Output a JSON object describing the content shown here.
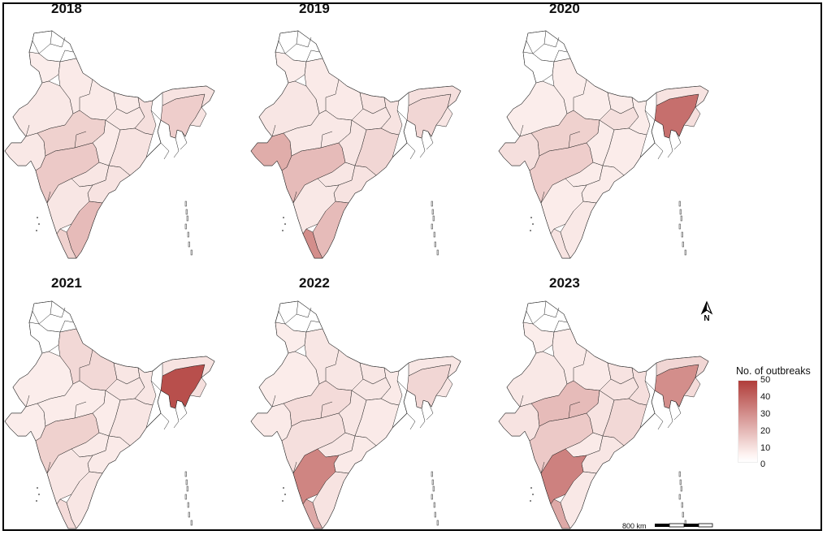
{
  "colors": {
    "low": "#fdf1ef",
    "high": "#b03d3a",
    "stroke": "#222222"
  },
  "panels": [
    {
      "year": "2018",
      "assam": 0.2,
      "nagaland": 0.08,
      "arunachal": 0.08,
      "gujarat": 0.05,
      "maharashtra": 0.22,
      "karnataka": 0.06,
      "kerala": 0.18,
      "tamilnadu": 0.3,
      "andhra": 0.08,
      "telangana": 0.06,
      "madhya": 0.18,
      "up": 0.04,
      "rajasthan": 0.05,
      "bihar": 0.04,
      "odisha": 0.08,
      "chhattisgarh": 0.04,
      "jharkhand": 0.05,
      "wb": 0.1,
      "punjab": 0.02
    },
    {
      "year": "2019",
      "assam": 0.15,
      "nagaland": 0.06,
      "arunachal": 0.1,
      "gujarat": 0.38,
      "maharashtra": 0.3,
      "karnataka": 0.05,
      "kerala": 0.55,
      "tamilnadu": 0.3,
      "andhra": 0.08,
      "telangana": 0.06,
      "madhya": 0.05,
      "up": 0.04,
      "rajasthan": 0.06,
      "bihar": 0.08,
      "odisha": 0.15,
      "chhattisgarh": 0.06,
      "jharkhand": 0.06,
      "wb": 0.08,
      "punjab": 0.02
    },
    {
      "year": "2020",
      "assam": 0.72,
      "nagaland": 0.1,
      "arunachal": 0.08,
      "gujarat": 0.1,
      "maharashtra": 0.2,
      "karnataka": 0.03,
      "kerala": 0.08,
      "tamilnadu": 0.05,
      "andhra": 0.03,
      "telangana": 0.03,
      "madhya": 0.18,
      "up": 0.02,
      "rajasthan": 0.02,
      "bihar": 0.04,
      "odisha": 0.03,
      "chhattisgarh": 0.03,
      "jharkhand": 0.1,
      "wb": 0.03,
      "punjab": 0.01
    },
    {
      "year": "2021",
      "assam": 0.9,
      "nagaland": 0.1,
      "arunachal": 0.08,
      "gujarat": 0.02,
      "maharashtra": 0.18,
      "karnataka": 0.06,
      "kerala": 0.12,
      "tamilnadu": 0.06,
      "andhra": 0.04,
      "telangana": 0.04,
      "madhya": 0.03,
      "up": 0.14,
      "rajasthan": 0.02,
      "bihar": 0.06,
      "odisha": 0.06,
      "chhattisgarh": 0.03,
      "jharkhand": 0.06,
      "wb": 0.06,
      "punjab": 0.01
    },
    {
      "year": "2022",
      "assam": 0.15,
      "nagaland": 0.06,
      "arunachal": 0.06,
      "gujarat": 0.04,
      "maharashtra": 0.1,
      "karnataka": 0.6,
      "kerala": 0.4,
      "tamilnadu": 0.08,
      "andhra": 0.04,
      "telangana": 0.06,
      "madhya": 0.12,
      "up": 0.06,
      "rajasthan": 0.03,
      "bihar": 0.06,
      "odisha": 0.04,
      "chhattisgarh": 0.06,
      "jharkhand": 0.06,
      "wb": 0.04,
      "punjab": 0.02
    },
    {
      "year": "2023",
      "assam": 0.55,
      "nagaland": 0.12,
      "arunachal": 0.15,
      "gujarat": 0.08,
      "maharashtra": 0.22,
      "karnataka": 0.62,
      "kerala": 0.4,
      "tamilnadu": 0.05,
      "andhra": 0.06,
      "telangana": 0.04,
      "madhya": 0.3,
      "up": 0.04,
      "rajasthan": 0.05,
      "bihar": 0.08,
      "odisha": 0.14,
      "chhattisgarh": 0.08,
      "jharkhand": 0.08,
      "wb": 0.1,
      "punjab": 0.02
    }
  ],
  "legend": {
    "title": "No. of outbreaks",
    "ticks": [
      "50",
      "40",
      "30",
      "20",
      "10",
      "0"
    ]
  },
  "north_label": "N",
  "scale_label": "800 km"
}
